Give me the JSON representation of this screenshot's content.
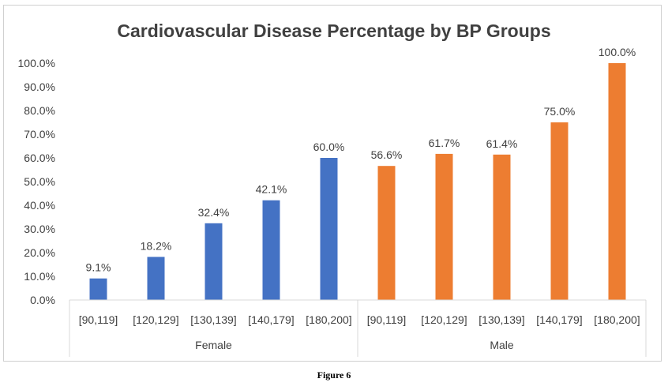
{
  "chart_data": {
    "type": "bar",
    "title": "Cardiovascular Disease Percentage by BP Groups",
    "xlabel": "",
    "ylabel": "",
    "ylim": [
      0,
      100
    ],
    "y_ticks": [
      "0.0%",
      "10.0%",
      "20.0%",
      "30.0%",
      "40.0%",
      "50.0%",
      "60.0%",
      "70.0%",
      "80.0%",
      "90.0%",
      "100.0%"
    ],
    "grid": false,
    "legend": "none",
    "groups": [
      {
        "name": "Female",
        "color": "#4472C4",
        "categories": [
          "[90,119]",
          "[120,129]",
          "[130,139]",
          "[140,179]",
          "[180,200]"
        ],
        "values": [
          9.1,
          18.2,
          32.4,
          42.1,
          60.0
        ],
        "labels": [
          "9.1%",
          "18.2%",
          "32.4%",
          "42.1%",
          "60.0%"
        ]
      },
      {
        "name": "Male",
        "color": "#ED7D31",
        "categories": [
          "[90,119]",
          "[120,129]",
          "[130,139]",
          "[140,179]",
          "[180,200]"
        ],
        "values": [
          56.6,
          61.7,
          61.4,
          75.0,
          100.0
        ],
        "labels": [
          "56.6%",
          "61.7%",
          "61.4%",
          "75.0%",
          "100.0%"
        ]
      }
    ]
  },
  "caption": "Figure 6"
}
